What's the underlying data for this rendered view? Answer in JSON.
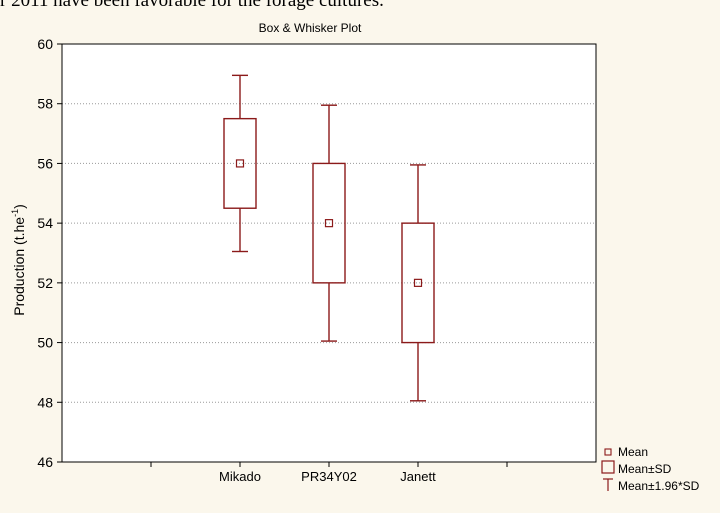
{
  "page": {
    "top_text": "r 2011 have been favorable for the forage cultures."
  },
  "chart_data": {
    "type": "box",
    "title": "Box & Whisker Plot",
    "ylabel": "Production (t.he",
    "ylabel_superscript": "-1",
    "ylabel_suffix": ")",
    "xlabel": "",
    "ylim": [
      46,
      60
    ],
    "yticks": [
      46,
      48,
      50,
      52,
      54,
      56,
      58,
      60
    ],
    "grid": true,
    "categories": [
      "Mikado",
      "PR34Y02",
      "Janett"
    ],
    "series": [
      {
        "category": "Mikado",
        "mean": 56.0,
        "sd_low": 54.5,
        "sd_high": 57.5,
        "whisker_low": 53.05,
        "whisker_high": 58.95
      },
      {
        "category": "PR34Y02",
        "mean": 54.0,
        "sd_low": 52.0,
        "sd_high": 56.0,
        "whisker_low": 50.05,
        "whisker_high": 57.95
      },
      {
        "category": "Janett",
        "mean": 52.0,
        "sd_low": 50.0,
        "sd_high": 54.0,
        "whisker_low": 48.05,
        "whisker_high": 55.95
      }
    ],
    "legend": {
      "placement": "bottom-right",
      "items": [
        {
          "symbol": "square-small",
          "label": "Mean"
        },
        {
          "symbol": "box",
          "label": "Mean±SD"
        },
        {
          "symbol": "whisker",
          "label": "Mean±1.96*SD"
        }
      ]
    },
    "colors": {
      "series": "#8b1a1a",
      "grid": "#9a9a9a",
      "axis": "#000000",
      "background": "#ffffff"
    }
  }
}
